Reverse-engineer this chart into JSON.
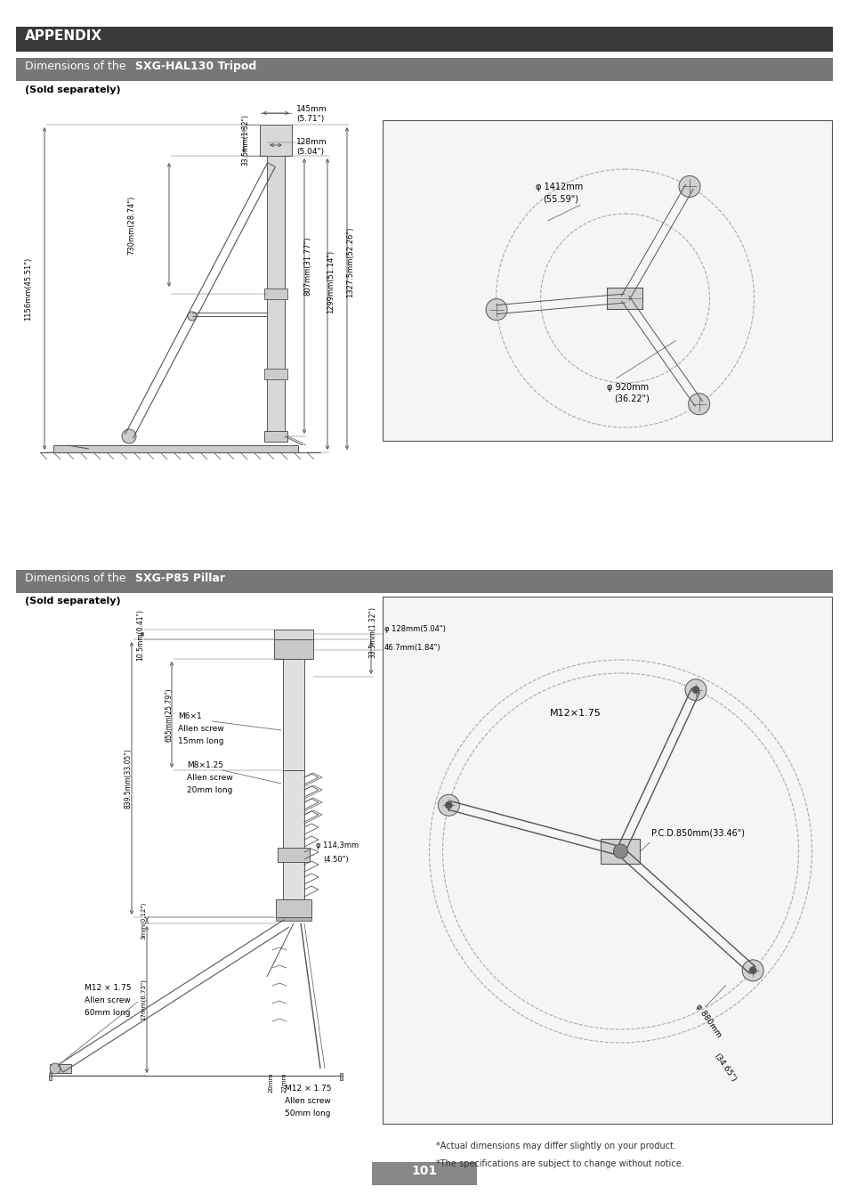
{
  "bg": "#ffffff",
  "page_width": 9.54,
  "page_height": 13.51,
  "dg": "#555555",
  "lg": "#aaaaaa",
  "header_bg1": "#3a3a3a",
  "header_bg2": "#777777",
  "footnotes": [
    "*Actual dimensions may differ slightly on your product.",
    "*The specifications are subject to change without notice."
  ],
  "page_number": "101"
}
